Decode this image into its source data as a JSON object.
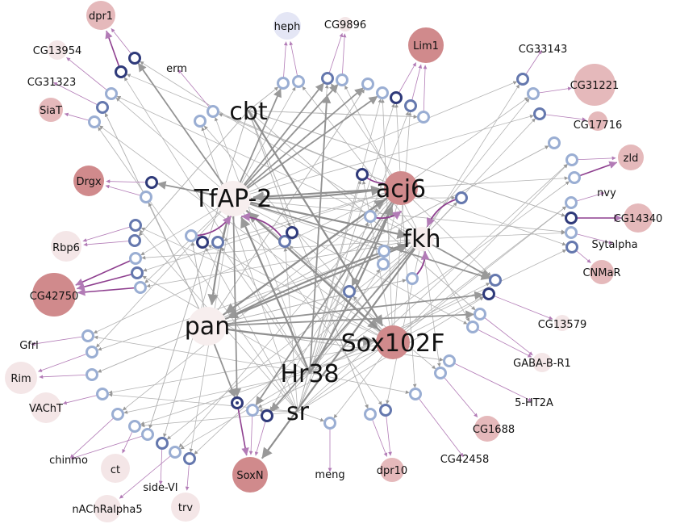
{
  "colors": {
    "edge_gray": "#999999",
    "edge_purple": "#8e3f8f",
    "edge_light_purple": "#b27bb6",
    "hub_fill": "#f7eeee",
    "ring_light": "#9aaed3",
    "ring_mid": "#6578ae",
    "ring_dark": "#2f3a7a",
    "gene_strong": "#d08a8c",
    "gene_medium": "#e5b9bb",
    "gene_light": "#f4e6e7",
    "gene_blue": "#e4e6f5"
  },
  "hubs": [
    {
      "id": "tfap2",
      "label": "TfAP-2"
    },
    {
      "id": "acj6",
      "label": "acj6"
    },
    {
      "id": "fkh",
      "label": "fkh"
    },
    {
      "id": "pan",
      "label": "pan"
    },
    {
      "id": "sox102f",
      "label": "Sox102F"
    },
    {
      "id": "hr38",
      "label": "Hr38"
    },
    {
      "id": "sr",
      "label": "sr"
    },
    {
      "id": "cbt",
      "label": "cbt"
    }
  ],
  "genes": [
    {
      "id": "dpr1",
      "label": "dpr1"
    },
    {
      "id": "heph",
      "label": "heph"
    },
    {
      "id": "cg9896",
      "label": "CG9896"
    },
    {
      "id": "lim1",
      "label": "Lim1"
    },
    {
      "id": "cg13954",
      "label": "CG13954"
    },
    {
      "id": "erm",
      "label": "erm"
    },
    {
      "id": "cg33143",
      "label": "CG33143"
    },
    {
      "id": "cg31323",
      "label": "CG31323"
    },
    {
      "id": "cg31221",
      "label": "CG31221"
    },
    {
      "id": "siat",
      "label": "SiaT"
    },
    {
      "id": "cg17716",
      "label": "CG17716"
    },
    {
      "id": "drgx",
      "label": "Drgx"
    },
    {
      "id": "zld",
      "label": "zld"
    },
    {
      "id": "nvy",
      "label": "nvy"
    },
    {
      "id": "cg14340",
      "label": "CG14340"
    },
    {
      "id": "rbp6",
      "label": "Rbp6"
    },
    {
      "id": "sytalpha",
      "label": "Sytalpha"
    },
    {
      "id": "cnmar",
      "label": "CNMaR"
    },
    {
      "id": "cg42750",
      "label": "CG42750"
    },
    {
      "id": "cg13579",
      "label": "CG13579"
    },
    {
      "id": "gfrl",
      "label": "Gfrl"
    },
    {
      "id": "gababr1",
      "label": "GABA-B-R1"
    },
    {
      "id": "rim",
      "label": "Rim"
    },
    {
      "id": "vacht",
      "label": "VAChT"
    },
    {
      "id": "ht2a",
      "label": "5-HT2A"
    },
    {
      "id": "cg1688",
      "label": "CG1688"
    },
    {
      "id": "chinmo",
      "label": "chinmo"
    },
    {
      "id": "ct",
      "label": "ct"
    },
    {
      "id": "cg42458",
      "label": "CG42458"
    },
    {
      "id": "sidevi",
      "label": "side-VI"
    },
    {
      "id": "soxn",
      "label": "SoxN"
    },
    {
      "id": "meng",
      "label": "meng"
    },
    {
      "id": "dpr10",
      "label": "dpr10"
    },
    {
      "id": "nachr5",
      "label": "nAChRalpha5"
    },
    {
      "id": "trv",
      "label": "trv"
    }
  ]
}
